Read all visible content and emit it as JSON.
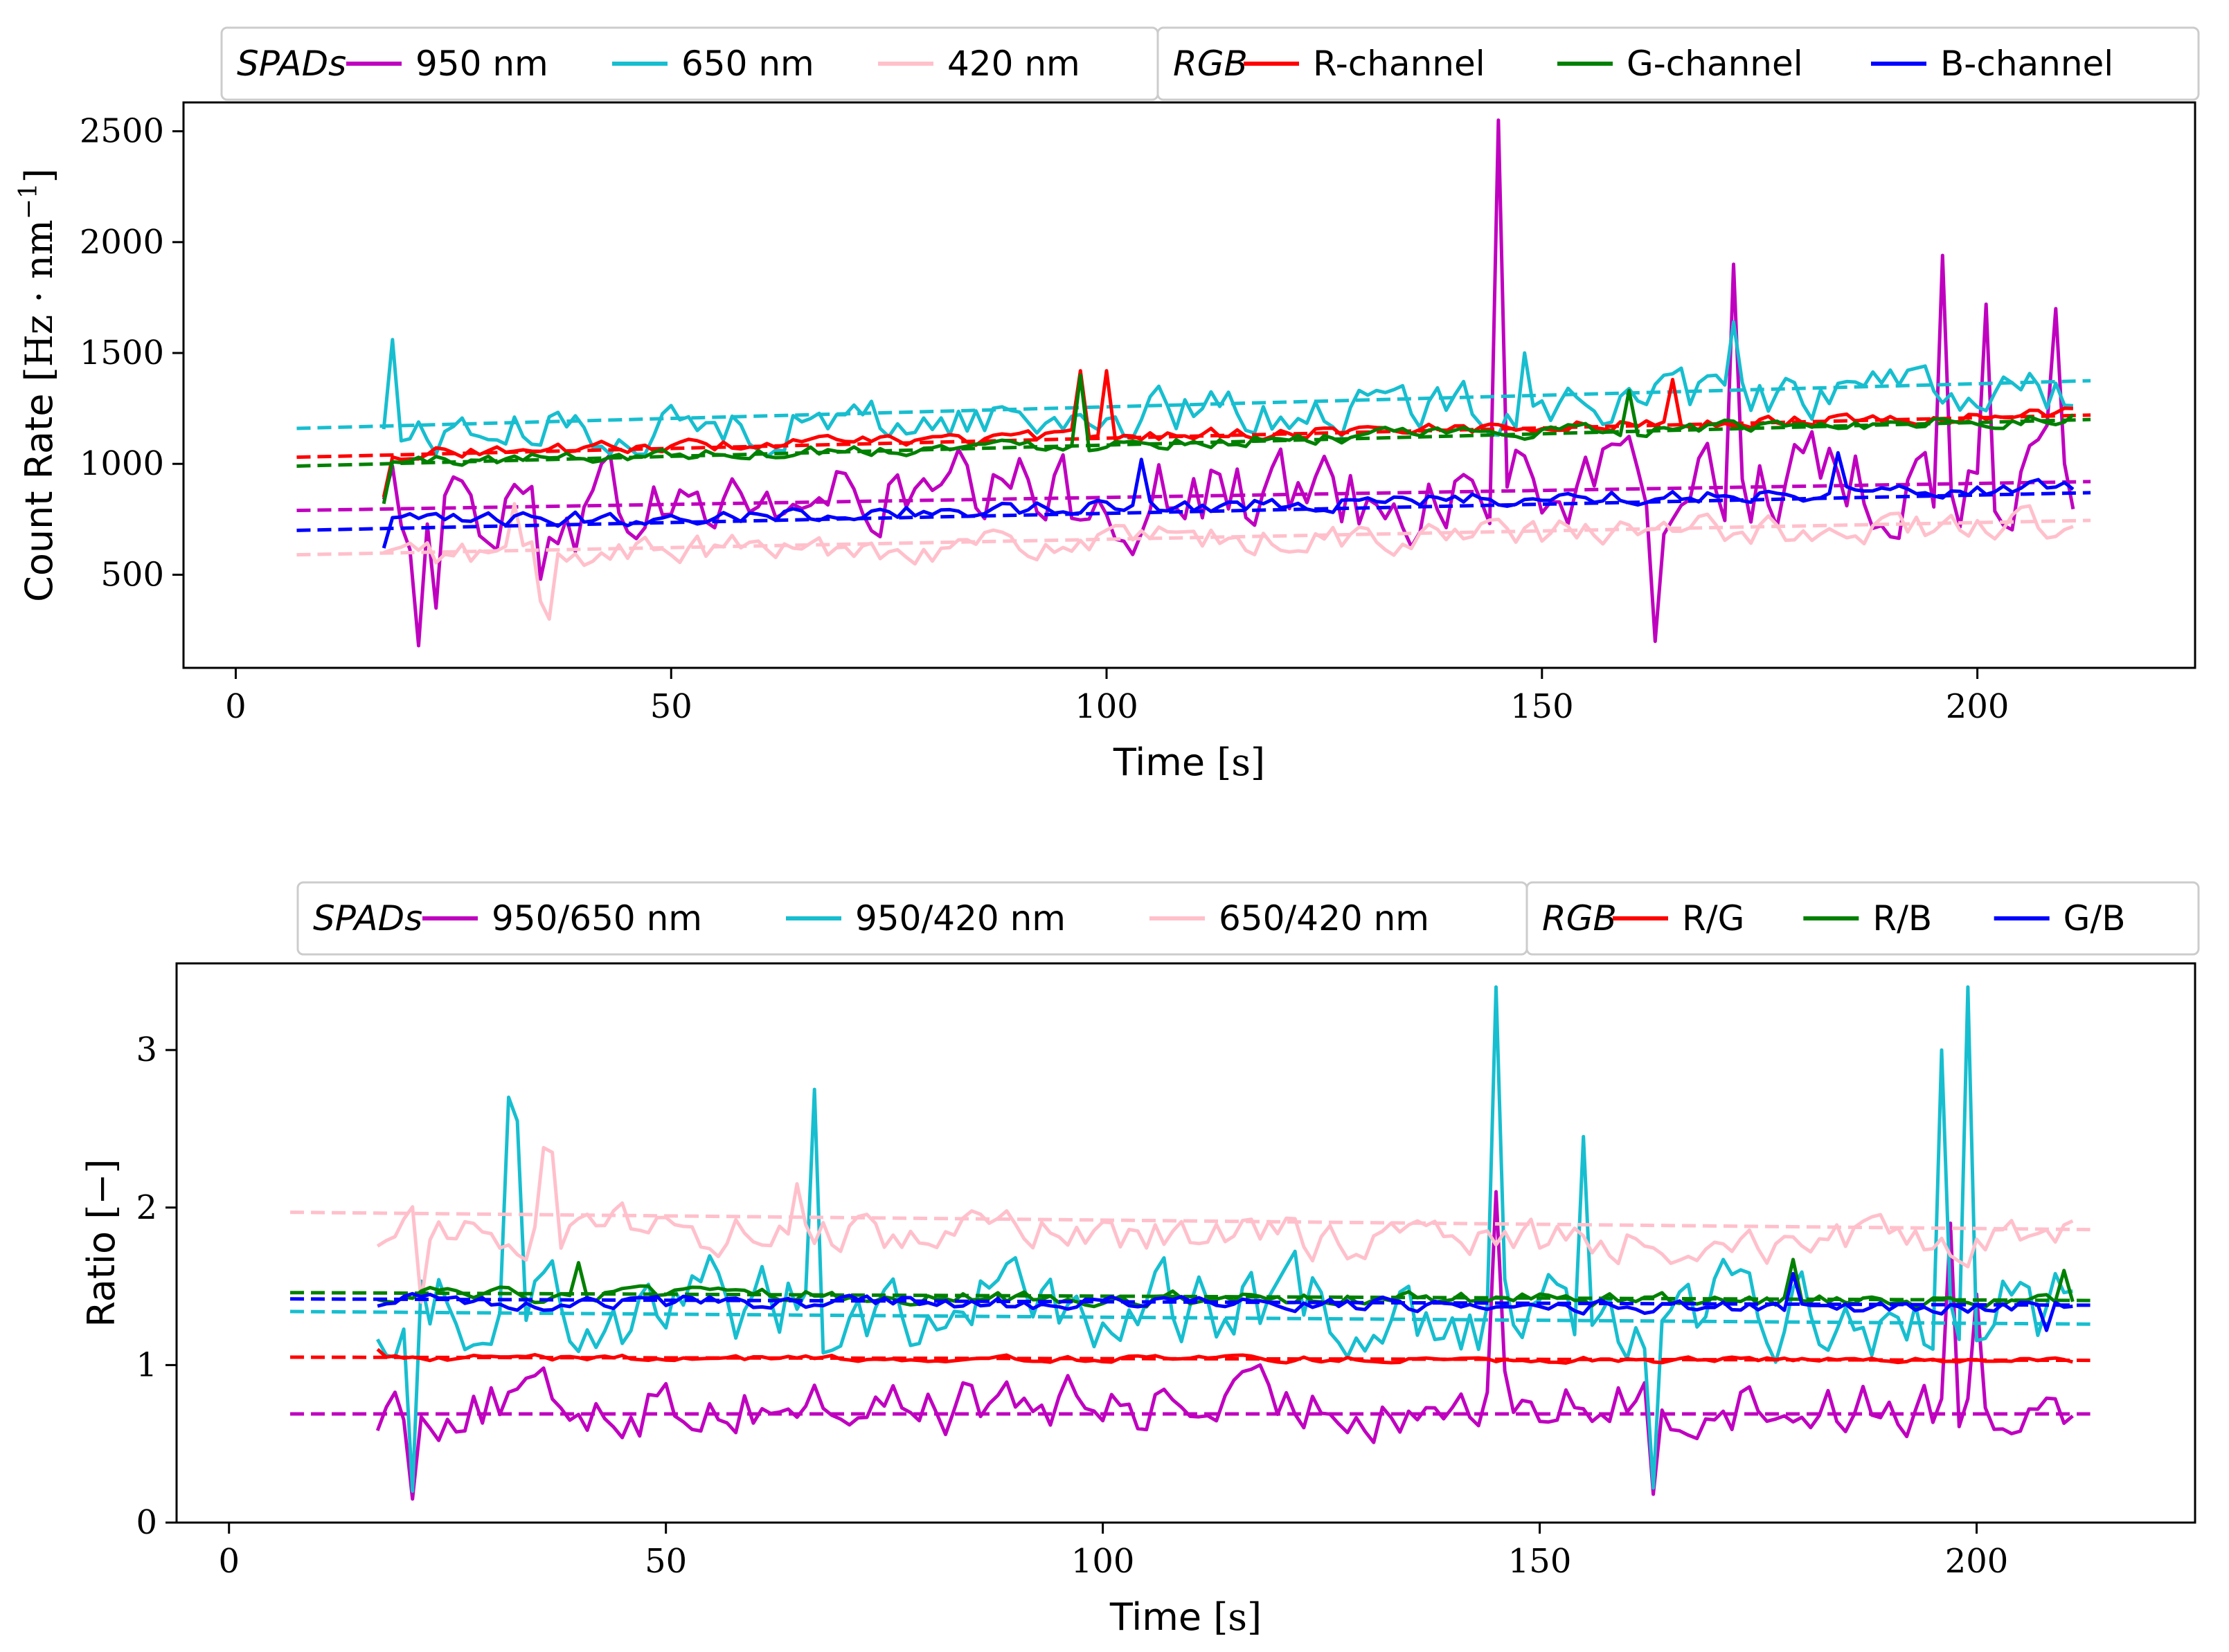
{
  "colors": {
    "c950": "#bf00bf",
    "c650": "#17becf",
    "c420": "#ffc0cb",
    "r": "#ff0000",
    "g": "#008000",
    "b": "#0000ff"
  },
  "chart_data": [
    {
      "type": "line",
      "xlabel": "Time",
      "xunit": "[s]",
      "ylabel": "Count Rate",
      "yunit": "[Hz · nm",
      "yunit_sup": "−1",
      "yunit_close": "]",
      "xlim": [
        -6,
        225
      ],
      "ylim": [
        80,
        2630
      ],
      "xticks": [
        0,
        50,
        100,
        150,
        200
      ],
      "yticks": [
        500,
        1000,
        1500,
        2000,
        2500
      ],
      "legend": {
        "placement": "top",
        "group1_title": "SPADs",
        "group2_title": "RGB",
        "group1_entries": [
          {
            "label": "950 nm",
            "color": "c950"
          },
          {
            "label": "650 nm",
            "color": "c650"
          },
          {
            "label": "420 nm",
            "color": "c420"
          }
        ],
        "group2_entries": [
          {
            "label": "R-channel",
            "color": "r"
          },
          {
            "label": "G-channel",
            "color": "g"
          },
          {
            "label": "B-channel",
            "color": "b"
          }
        ]
      },
      "series": [
        {
          "name": "950 nm",
          "color": "c950",
          "x_start": 17,
          "x_step": 1,
          "base": 850,
          "amp": 330,
          "spikes": [
            [
              21,
              180
            ],
            [
              23,
              350
            ],
            [
              35,
              480
            ],
            [
              145,
              2550
            ],
            [
              163,
              200
            ],
            [
              172,
              1900
            ],
            [
              196,
              1940
            ],
            [
              201,
              1720
            ],
            [
              209,
              1700
            ]
          ],
          "trend": [
            7,
            790,
            213,
            920
          ]
        },
        {
          "name": "650 nm",
          "color": "c650",
          "x_start": 17,
          "x_step": 1,
          "base": 1200,
          "amp": 170,
          "spikes": [
            [
              18,
              1560
            ],
            [
              172,
              1640
            ],
            [
              148,
              1500
            ]
          ],
          "trend": [
            7,
            1160,
            213,
            1375
          ]
        },
        {
          "name": "420 nm",
          "color": "c420",
          "x_start": 17,
          "x_step": 1,
          "base": 640,
          "amp": 110,
          "spikes": [
            [
              36,
              300
            ],
            [
              35,
              380
            ],
            [
              32,
              820
            ]
          ],
          "trend": [
            7,
            590,
            213,
            745
          ]
        },
        {
          "name": "R-channel",
          "color": "r",
          "x_start": 17,
          "x_step": 1,
          "base": 1140,
          "amp": 45,
          "spikes": [
            [
              17,
              850
            ],
            [
              97,
              1420
            ],
            [
              100,
              1420
            ],
            [
              165,
              1380
            ]
          ],
          "trend": [
            7,
            1030,
            213,
            1220
          ]
        },
        {
          "name": "G-channel",
          "color": "g",
          "x_start": 17,
          "x_step": 1,
          "base": 1110,
          "amp": 45,
          "spikes": [
            [
              17,
              820
            ],
            [
              97,
              1400
            ],
            [
              160,
              1330
            ]
          ],
          "trend": [
            7,
            990,
            213,
            1200
          ]
        },
        {
          "name": "B-channel",
          "color": "b",
          "x_start": 17,
          "x_step": 1,
          "base": 830,
          "amp": 55,
          "spikes": [
            [
              17,
              620
            ],
            [
              104,
              1020
            ],
            [
              184,
              1050
            ]
          ],
          "trend": [
            7,
            700,
            213,
            870
          ]
        }
      ]
    },
    {
      "type": "line",
      "xlabel": "Time",
      "xunit": "[s]",
      "ylabel": "Ratio",
      "yunit": "[−]",
      "xlim": [
        -6,
        225
      ],
      "ylim": [
        0,
        3.55
      ],
      "xticks": [
        0,
        50,
        100,
        150,
        200
      ],
      "yticks": [
        0,
        1,
        2,
        3
      ],
      "legend": {
        "placement": "top",
        "group1_title": "SPADs",
        "group2_title": "RGB",
        "group1_entries": [
          {
            "label": "950/650 nm",
            "color": "c950"
          },
          {
            "label": "950/420 nm",
            "color": "c650"
          },
          {
            "label": "650/420 nm",
            "color": "c420"
          }
        ],
        "group2_entries": [
          {
            "label": "R/G",
            "color": "r"
          },
          {
            "label": "R/B",
            "color": "g"
          },
          {
            "label": "G/B",
            "color": "b"
          }
        ]
      },
      "series": [
        {
          "name": "950/650 nm",
          "color": "c950",
          "x_start": 17,
          "x_step": 1,
          "base": 0.78,
          "amp": 0.3,
          "spikes": [
            [
              21,
              0.15
            ],
            [
              145,
              2.1
            ],
            [
              163,
              0.18
            ],
            [
              197,
              1.9
            ],
            [
              200,
              1.45
            ]
          ],
          "trend": [
            7,
            0.69,
            213,
            0.69
          ]
        },
        {
          "name": "950/420 nm",
          "color": "c650",
          "x_start": 17,
          "x_step": 1,
          "base": 1.4,
          "amp": 0.45,
          "spikes": [
            [
              21,
              0.2
            ],
            [
              32,
              2.7
            ],
            [
              33,
              2.55
            ],
            [
              67,
              2.75
            ],
            [
              145,
              3.4
            ],
            [
              155,
              2.45
            ],
            [
              196,
              3.0
            ],
            [
              199,
              3.4
            ],
            [
              163,
              0.22
            ]
          ],
          "trend": [
            7,
            1.34,
            213,
            1.26
          ]
        },
        {
          "name": "650/420 nm",
          "color": "c420",
          "x_start": 17,
          "x_step": 1,
          "base": 1.75,
          "amp": 0.22,
          "spikes": [
            [
              36,
              2.38
            ],
            [
              37,
              2.35
            ],
            [
              65,
              2.15
            ],
            [
              22,
              1.4
            ]
          ],
          "trend": [
            7,
            1.97,
            213,
            1.86
          ]
        },
        {
          "name": "R/G",
          "color": "r",
          "x_start": 17,
          "x_step": 1,
          "base": 1.04,
          "amp": 0.03,
          "spikes": [
            [
              17,
              1.1
            ]
          ],
          "trend": [
            7,
            1.05,
            213,
            1.03
          ]
        },
        {
          "name": "R/B",
          "color": "g",
          "x_start": 17,
          "x_step": 1,
          "base": 1.42,
          "amp": 0.07,
          "spikes": [
            [
              40,
              1.65
            ],
            [
              179,
              1.67
            ],
            [
              210,
              1.6
            ]
          ],
          "trend": [
            7,
            1.46,
            213,
            1.41
          ]
        },
        {
          "name": "G/B",
          "color": "b",
          "x_start": 17,
          "x_step": 1,
          "base": 1.38,
          "amp": 0.07,
          "spikes": [
            [
              179,
              1.58
            ],
            [
              208,
              1.22
            ]
          ],
          "trend": [
            7,
            1.42,
            213,
            1.38
          ]
        }
      ]
    }
  ]
}
